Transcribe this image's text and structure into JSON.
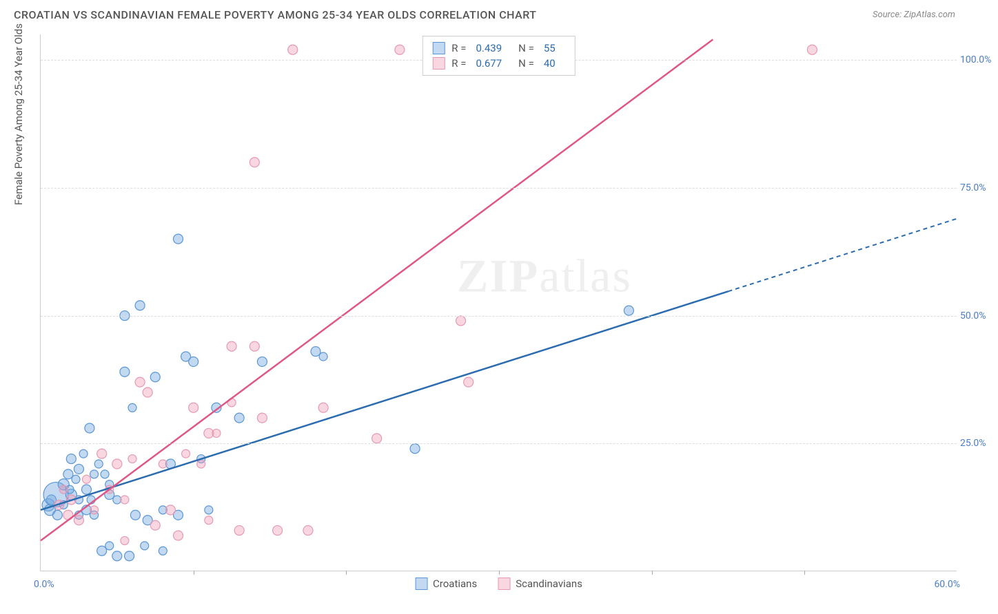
{
  "header": {
    "title": "CROATIAN VS SCANDINAVIAN FEMALE POVERTY AMONG 25-34 YEAR OLDS CORRELATION CHART",
    "source": "Source: ZipAtlas.com"
  },
  "watermark": {
    "part1": "ZIP",
    "part2": "atlas"
  },
  "chart": {
    "type": "scatter",
    "xlim": [
      0,
      60
    ],
    "ylim": [
      0,
      105
    ],
    "xticks_every": 10,
    "xlabel_min": "0.0%",
    "xlabel_max": "60.0%",
    "yaxis_title": "Female Poverty Among 25-34 Year Olds",
    "yticks": [
      {
        "value": 25,
        "label": "25.0%"
      },
      {
        "value": 50,
        "label": "50.0%"
      },
      {
        "value": 75,
        "label": "75.0%"
      },
      {
        "value": 100,
        "label": "100.0%"
      }
    ],
    "grid_color": "#dddddd",
    "background_color": "#ffffff",
    "series": [
      {
        "key": "croatians",
        "label": "Croatians",
        "fill_color": "rgba(120,170,225,0.45)",
        "stroke_color": "#5a96d6",
        "line_color": "#2b6cb0",
        "R": "0.439",
        "N": "55",
        "trend": {
          "x1": 0,
          "y1": 12,
          "x2": 45,
          "y2": 51,
          "extend_x": 60,
          "extend_y": 69,
          "dashed_after": 45
        },
        "points": [
          {
            "x": 0.5,
            "y": 13,
            "r": 9
          },
          {
            "x": 0.6,
            "y": 12,
            "r": 8
          },
          {
            "x": 0.7,
            "y": 14,
            "r": 7
          },
          {
            "x": 1.0,
            "y": 15,
            "r": 18
          },
          {
            "x": 1.1,
            "y": 11,
            "r": 7
          },
          {
            "x": 1.5,
            "y": 17,
            "r": 8
          },
          {
            "x": 1.5,
            "y": 13,
            "r": 6
          },
          {
            "x": 1.8,
            "y": 19,
            "r": 7
          },
          {
            "x": 2.0,
            "y": 15,
            "r": 8
          },
          {
            "x": 2.0,
            "y": 22,
            "r": 7
          },
          {
            "x": 2.3,
            "y": 18,
            "r": 6
          },
          {
            "x": 2.5,
            "y": 11,
            "r": 6
          },
          {
            "x": 2.5,
            "y": 20,
            "r": 7
          },
          {
            "x": 2.8,
            "y": 23,
            "r": 6
          },
          {
            "x": 3.0,
            "y": 16,
            "r": 7
          },
          {
            "x": 3.0,
            "y": 12,
            "r": 7
          },
          {
            "x": 3.5,
            "y": 19,
            "r": 6
          },
          {
            "x": 3.2,
            "y": 28,
            "r": 7
          },
          {
            "x": 3.5,
            "y": 11,
            "r": 6
          },
          {
            "x": 3.8,
            "y": 21,
            "r": 6
          },
          {
            "x": 4.0,
            "y": 4,
            "r": 7
          },
          {
            "x": 4.5,
            "y": 15,
            "r": 7
          },
          {
            "x": 4.5,
            "y": 17,
            "r": 6
          },
          {
            "x": 4.5,
            "y": 5,
            "r": 6
          },
          {
            "x": 5.0,
            "y": 3,
            "r": 7
          },
          {
            "x": 5.0,
            "y": 14,
            "r": 6
          },
          {
            "x": 5.5,
            "y": 50,
            "r": 7
          },
          {
            "x": 5.5,
            "y": 39,
            "r": 7
          },
          {
            "x": 5.8,
            "y": 3,
            "r": 7
          },
          {
            "x": 6.0,
            "y": 32,
            "r": 6
          },
          {
            "x": 6.2,
            "y": 11,
            "r": 7
          },
          {
            "x": 6.5,
            "y": 52,
            "r": 7
          },
          {
            "x": 6.8,
            "y": 5,
            "r": 6
          },
          {
            "x": 7.0,
            "y": 10,
            "r": 7
          },
          {
            "x": 7.5,
            "y": 38,
            "r": 7
          },
          {
            "x": 8.0,
            "y": 12,
            "r": 6
          },
          {
            "x": 8.0,
            "y": 4,
            "r": 6
          },
          {
            "x": 8.5,
            "y": 21,
            "r": 7
          },
          {
            "x": 9.0,
            "y": 65,
            "r": 7
          },
          {
            "x": 9.0,
            "y": 11,
            "r": 7
          },
          {
            "x": 9.5,
            "y": 42,
            "r": 7
          },
          {
            "x": 10.0,
            "y": 41,
            "r": 7
          },
          {
            "x": 10.5,
            "y": 22,
            "r": 6
          },
          {
            "x": 11.0,
            "y": 12,
            "r": 6
          },
          {
            "x": 11.5,
            "y": 32,
            "r": 7
          },
          {
            "x": 13.0,
            "y": 30,
            "r": 7
          },
          {
            "x": 14.5,
            "y": 41,
            "r": 7
          },
          {
            "x": 18.0,
            "y": 43,
            "r": 7
          },
          {
            "x": 18.5,
            "y": 42,
            "r": 6
          },
          {
            "x": 24.5,
            "y": 24,
            "r": 7
          },
          {
            "x": 38.5,
            "y": 51,
            "r": 7
          },
          {
            "x": 2.5,
            "y": 14,
            "r": 6
          },
          {
            "x": 1.9,
            "y": 16,
            "r": 6
          },
          {
            "x": 3.3,
            "y": 14,
            "r": 6
          },
          {
            "x": 4.2,
            "y": 19,
            "r": 6
          }
        ]
      },
      {
        "key": "scandinavians",
        "label": "Scandinavians",
        "fill_color": "rgba(240,155,180,0.40)",
        "stroke_color": "#e699b3",
        "line_color": "#e05785",
        "R": "0.677",
        "N": "40",
        "trend": {
          "x1": 0,
          "y1": 6,
          "x2": 44,
          "y2": 104,
          "extend_x": 44,
          "extend_y": 104,
          "dashed_after": 44
        },
        "points": [
          {
            "x": 1.2,
            "y": 13,
            "r": 7
          },
          {
            "x": 1.5,
            "y": 16,
            "r": 6
          },
          {
            "x": 1.8,
            "y": 11,
            "r": 7
          },
          {
            "x": 2.0,
            "y": 14,
            "r": 7
          },
          {
            "x": 2.5,
            "y": 10,
            "r": 7
          },
          {
            "x": 3.0,
            "y": 18,
            "r": 6
          },
          {
            "x": 3.5,
            "y": 12,
            "r": 6
          },
          {
            "x": 4.0,
            "y": 23,
            "r": 7
          },
          {
            "x": 4.5,
            "y": 16,
            "r": 6
          },
          {
            "x": 5.0,
            "y": 21,
            "r": 7
          },
          {
            "x": 5.5,
            "y": 14,
            "r": 6
          },
          {
            "x": 5.5,
            "y": 6,
            "r": 6
          },
          {
            "x": 6.0,
            "y": 22,
            "r": 6
          },
          {
            "x": 6.5,
            "y": 37,
            "r": 7
          },
          {
            "x": 7.0,
            "y": 35,
            "r": 7
          },
          {
            "x": 7.5,
            "y": 9,
            "r": 7
          },
          {
            "x": 8.0,
            "y": 21,
            "r": 6
          },
          {
            "x": 8.5,
            "y": 12,
            "r": 7
          },
          {
            "x": 9.0,
            "y": 7,
            "r": 7
          },
          {
            "x": 9.5,
            "y": 23,
            "r": 6
          },
          {
            "x": 10.0,
            "y": 32,
            "r": 7
          },
          {
            "x": 10.5,
            "y": 21,
            "r": 6
          },
          {
            "x": 11.0,
            "y": 27,
            "r": 7
          },
          {
            "x": 11.0,
            "y": 10,
            "r": 6
          },
          {
            "x": 11.5,
            "y": 27,
            "r": 6
          },
          {
            "x": 12.5,
            "y": 44,
            "r": 7
          },
          {
            "x": 12.5,
            "y": 33,
            "r": 6
          },
          {
            "x": 13.0,
            "y": 8,
            "r": 7
          },
          {
            "x": 14.0,
            "y": 44,
            "r": 7
          },
          {
            "x": 14.5,
            "y": 30,
            "r": 7
          },
          {
            "x": 14.0,
            "y": 80,
            "r": 7
          },
          {
            "x": 15.5,
            "y": 8,
            "r": 7
          },
          {
            "x": 16.5,
            "y": 102,
            "r": 7
          },
          {
            "x": 17.5,
            "y": 8,
            "r": 7
          },
          {
            "x": 18.5,
            "y": 32,
            "r": 7
          },
          {
            "x": 22.0,
            "y": 26,
            "r": 7
          },
          {
            "x": 23.5,
            "y": 102,
            "r": 7
          },
          {
            "x": 27.5,
            "y": 49,
            "r": 7
          },
          {
            "x": 28.0,
            "y": 37,
            "r": 7
          },
          {
            "x": 50.5,
            "y": 102,
            "r": 7
          }
        ]
      }
    ],
    "bottom_legend": [
      {
        "swatch_fill": "rgba(120,170,225,0.45)",
        "swatch_stroke": "#5a96d6",
        "label": "Croatians"
      },
      {
        "swatch_fill": "rgba(240,155,180,0.40)",
        "swatch_stroke": "#e699b3",
        "label": "Scandinavians"
      }
    ]
  }
}
